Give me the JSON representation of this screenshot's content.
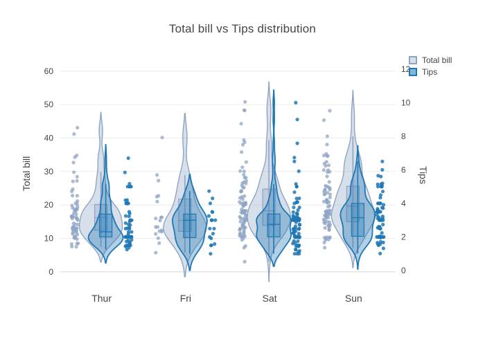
{
  "chart_data": {
    "type": "violin",
    "title": "Total bill vs Tips distribution",
    "categories": [
      "Thur",
      "Fri",
      "Sat",
      "Sun"
    ],
    "legend": {
      "position": "top-right",
      "items": [
        "Total bill",
        "Tips"
      ]
    },
    "grid": true,
    "yaxis_left": {
      "title": "Total bill",
      "ticks": [
        0,
        10,
        20,
        30,
        40,
        50,
        60
      ],
      "range": [
        -5.6,
        64.3
      ]
    },
    "yaxis_right": {
      "title": "Tips",
      "ticks": [
        0,
        2,
        4,
        6,
        8,
        10,
        12
      ],
      "range": [
        -1.2,
        12.74
      ]
    },
    "series": [
      {
        "name": "Total bill",
        "axis": "left",
        "side": "left",
        "line_color": "#8ea4c4",
        "fill_color": "rgba(140,162,196,0.35)",
        "box_fill": "rgba(140,162,196,0.30)",
        "point_color": "#8ea4c4",
        "values_by_day": {
          "Thur": [
            27.2,
            22.76,
            17.29,
            19.44,
            16.66,
            10.07,
            32.68,
            15.98,
            34.83,
            13.03,
            18.28,
            24.71,
            21.16,
            10.65,
            12.43,
            24.08,
            11.69,
            13.42,
            14.26,
            15.95,
            12.48,
            29.8,
            8.52,
            14.52,
            11.38,
            22.82,
            19.08,
            20.27,
            11.17,
            12.26,
            18.26,
            8.51,
            10.33,
            14.15,
            16.0,
            13.16,
            17.47,
            34.3,
            41.19,
            27.05,
            16.43,
            8.35,
            18.64,
            11.87,
            9.78,
            7.51,
            19.81,
            28.44,
            15.48,
            16.58,
            7.56,
            10.34,
            43.11,
            13.0,
            13.51,
            18.71,
            12.74,
            13.0,
            16.4,
            20.53,
            16.47,
            18.78
          ],
          "Fri": [
            28.97,
            22.49,
            5.75,
            16.32,
            22.75,
            40.17,
            27.28,
            12.03,
            21.01,
            12.46,
            11.35,
            15.38,
            12.16,
            13.42,
            8.58,
            15.98,
            13.42,
            16.27,
            10.09
          ],
          "Sat": [
            20.65,
            17.92,
            20.29,
            15.77,
            39.42,
            19.82,
            17.81,
            13.37,
            12.69,
            21.7,
            19.65,
            9.55,
            18.35,
            15.06,
            20.69,
            17.78,
            24.06,
            16.31,
            16.93,
            18.69,
            31.27,
            16.04,
            38.01,
            26.41,
            11.24,
            48.27,
            20.29,
            13.81,
            11.02,
            18.29,
            17.59,
            20.08,
            16.45,
            3.07,
            20.23,
            15.01,
            12.02,
            17.07,
            26.86,
            25.28,
            14.73,
            10.51,
            17.92,
            44.3,
            22.42,
            20.92,
            15.36,
            20.49,
            25.21,
            18.24,
            14.31,
            14.0,
            7.25,
            10.59,
            10.63,
            50.81,
            15.81,
            26.59,
            38.73,
            24.27,
            12.76,
            30.06,
            25.89,
            48.33,
            13.27,
            28.17,
            12.9,
            28.15,
            11.59,
            7.74,
            30.14,
            20.45,
            13.28,
            22.12,
            24.01,
            15.69,
            11.61,
            10.77,
            15.53,
            10.07,
            12.6,
            32.83,
            35.83,
            29.03,
            27.18,
            22.67,
            17.82
          ],
          "Sun": [
            16.99,
            10.34,
            21.01,
            23.68,
            24.59,
            25.29,
            8.77,
            26.88,
            15.04,
            14.78,
            10.27,
            35.26,
            15.42,
            18.43,
            14.83,
            21.58,
            10.33,
            16.29,
            16.97,
            17.46,
            13.94,
            9.68,
            30.4,
            18.29,
            22.23,
            32.4,
            28.55,
            18.04,
            12.54,
            10.29,
            34.81,
            9.94,
            25.56,
            19.49,
            38.07,
            23.95,
            25.71,
            17.31,
            29.93,
            14.07,
            13.13,
            17.26,
            24.55,
            19.77,
            29.85,
            48.17,
            25.0,
            13.39,
            16.49,
            21.5,
            12.66,
            16.21,
            13.81,
            17.51,
            24.52,
            20.76,
            31.71,
            7.25,
            31.85,
            16.82,
            32.9,
            17.89,
            14.48,
            9.6,
            34.63,
            34.65,
            23.33,
            45.35,
            23.17,
            40.55,
            20.69,
            20.9,
            30.46,
            18.15,
            23.1,
            15.69
          ]
        }
      },
      {
        "name": "Tips",
        "axis": "right",
        "side": "right",
        "line_color": "#1f77b4",
        "fill_color": "rgba(31,119,180,0.35)",
        "box_fill": "rgba(31,119,180,0.30)",
        "point_color": "#1f77b4",
        "values_by_day": {
          "Thur": [
            4.0,
            3.0,
            2.71,
            3.0,
            3.4,
            1.83,
            5.0,
            2.03,
            5.17,
            2.0,
            4.0,
            5.85,
            3.0,
            1.5,
            1.8,
            2.92,
            2.31,
            1.68,
            2.5,
            2.0,
            2.52,
            4.2,
            1.48,
            2.0,
            2.0,
            2.18,
            1.5,
            2.83,
            1.5,
            2.0,
            3.25,
            1.25,
            2.0,
            2.0,
            2.0,
            2.75,
            3.5,
            6.7,
            5.0,
            5.0,
            2.3,
            1.5,
            1.36,
            1.63,
            1.73,
            2.0,
            4.19,
            2.56,
            2.02,
            4.0,
            1.44,
            2.0,
            5.0,
            2.0,
            2.0,
            4.0,
            2.01,
            2.0,
            2.5,
            4.0,
            3.23,
            3.0
          ],
          "Fri": [
            3.0,
            3.5,
            1.0,
            4.3,
            3.25,
            4.73,
            4.0,
            1.5,
            3.0,
            1.5,
            2.5,
            3.0,
            2.2,
            3.48,
            1.92,
            3.0,
            1.58,
            2.5,
            2.0
          ],
          "Sat": [
            3.35,
            4.08,
            2.75,
            2.23,
            7.58,
            3.18,
            2.34,
            2.0,
            2.0,
            4.3,
            3.0,
            1.45,
            2.5,
            3.0,
            2.45,
            3.27,
            3.6,
            2.0,
            3.07,
            2.31,
            5.0,
            2.24,
            3.0,
            1.5,
            1.76,
            6.73,
            3.21,
            2.0,
            1.98,
            3.76,
            2.64,
            3.15,
            2.47,
            1.0,
            2.01,
            2.09,
            1.97,
            3.0,
            3.14,
            5.0,
            2.2,
            1.25,
            3.08,
            2.5,
            3.48,
            4.08,
            1.64,
            4.06,
            4.29,
            3.76,
            4.0,
            3.0,
            1.0,
            1.61,
            2.0,
            10.0,
            3.16,
            3.41,
            3.0,
            2.03,
            2.23,
            2.0,
            5.16,
            9.0,
            2.5,
            6.5,
            1.1,
            3.0,
            1.5,
            1.44,
            3.09,
            3.0,
            2.72,
            2.88,
            2.0,
            3.0,
            3.39,
            1.47,
            3.0,
            1.25,
            1.0,
            1.17,
            4.67,
            5.92,
            2.0,
            2.0,
            1.75
          ],
          "Sun": [
            1.01,
            1.66,
            3.5,
            3.31,
            3.61,
            4.71,
            2.0,
            3.12,
            1.96,
            3.23,
            1.71,
            5.0,
            1.57,
            3.0,
            3.02,
            3.92,
            1.67,
            3.71,
            3.5,
            2.54,
            3.06,
            1.32,
            5.6,
            3.0,
            5.0,
            6.0,
            2.05,
            3.0,
            2.5,
            2.6,
            5.2,
            1.56,
            4.34,
            3.51,
            4.0,
            2.55,
            4.0,
            3.5,
            5.07,
            2.5,
            2.0,
            2.74,
            2.0,
            2.0,
            5.14,
            5.0,
            3.75,
            2.61,
            2.0,
            3.5,
            2.5,
            2.0,
            2.0,
            3.0,
            3.48,
            2.24,
            4.5,
            5.15,
            3.18,
            4.0,
            3.11,
            2.0,
            2.0,
            4.0,
            3.55,
            3.68,
            5.65,
            3.5,
            6.5,
            3.0,
            5.0,
            3.5,
            2.0,
            3.5,
            4.0,
            1.5
          ]
        }
      }
    ],
    "style": {
      "background": "#ffffff",
      "grid_color": "#ebebeb",
      "zeroline_color": "#d6d6d6",
      "tick_color": "#444444",
      "title_color": "#444444"
    }
  }
}
